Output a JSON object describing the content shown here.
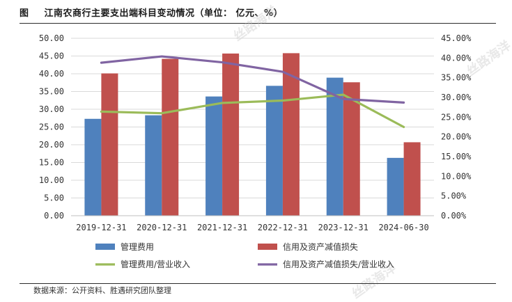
{
  "header": {
    "figure_label": "图",
    "title": "江南农商行主要支出端科目变动情况（单位： 亿元、%）"
  },
  "footer": {
    "source": "数据来源：公开资料、胜遇研究团队整理"
  },
  "watermark": {
    "text": "丝路海洋"
  },
  "colors": {
    "bar_mgmt": "#4f81bd",
    "bar_credit": "#c0504d",
    "line_mgmt_ratio": "#9bbb59",
    "line_credit_ratio": "#8064a2",
    "grid": "#d9d9d9"
  },
  "chart_data": {
    "type": "bar",
    "title": "江南农商行主要支出端科目变动情况（单位： 亿元、%）",
    "categories": [
      "2019-12-31",
      "2020-12-31",
      "2021-12-31",
      "2022-12-31",
      "2023-12-31",
      "2024-06-30"
    ],
    "y_left": {
      "min": 0,
      "max": 50,
      "step": 5,
      "tick_labels": [
        "0.00",
        "5.00",
        "10.00",
        "15.00",
        "20.00",
        "25.00",
        "30.00",
        "35.00",
        "40.00",
        "45.00",
        "50.00"
      ]
    },
    "y_right": {
      "min": 0,
      "max": 45,
      "step": 5,
      "tick_labels": [
        "0.00%",
        "5.00%",
        "10.00%",
        "15.00%",
        "20.00%",
        "25.00%",
        "30.00%",
        "35.00%",
        "40.00%",
        "45.00%"
      ]
    },
    "grid": true,
    "legend_position": "bottom",
    "series": [
      {
        "name": "管理费用",
        "kind": "bar",
        "axis": "left",
        "values": [
          27.3,
          28.3,
          33.6,
          36.6,
          38.9,
          16.3
        ]
      },
      {
        "name": "信用及资产减值损失",
        "kind": "bar",
        "axis": "left",
        "values": [
          40.1,
          44.2,
          45.7,
          45.8,
          37.6,
          20.7
        ]
      },
      {
        "name": "管理费用/营业收入",
        "kind": "line",
        "axis": "right",
        "values": [
          26.4,
          26.0,
          28.6,
          29.2,
          30.7,
          22.5
        ]
      },
      {
        "name": "信用及资产减值损失/营业收入",
        "kind": "line",
        "axis": "right",
        "values": [
          38.8,
          40.4,
          38.9,
          36.5,
          29.6,
          28.7
        ]
      }
    ]
  }
}
